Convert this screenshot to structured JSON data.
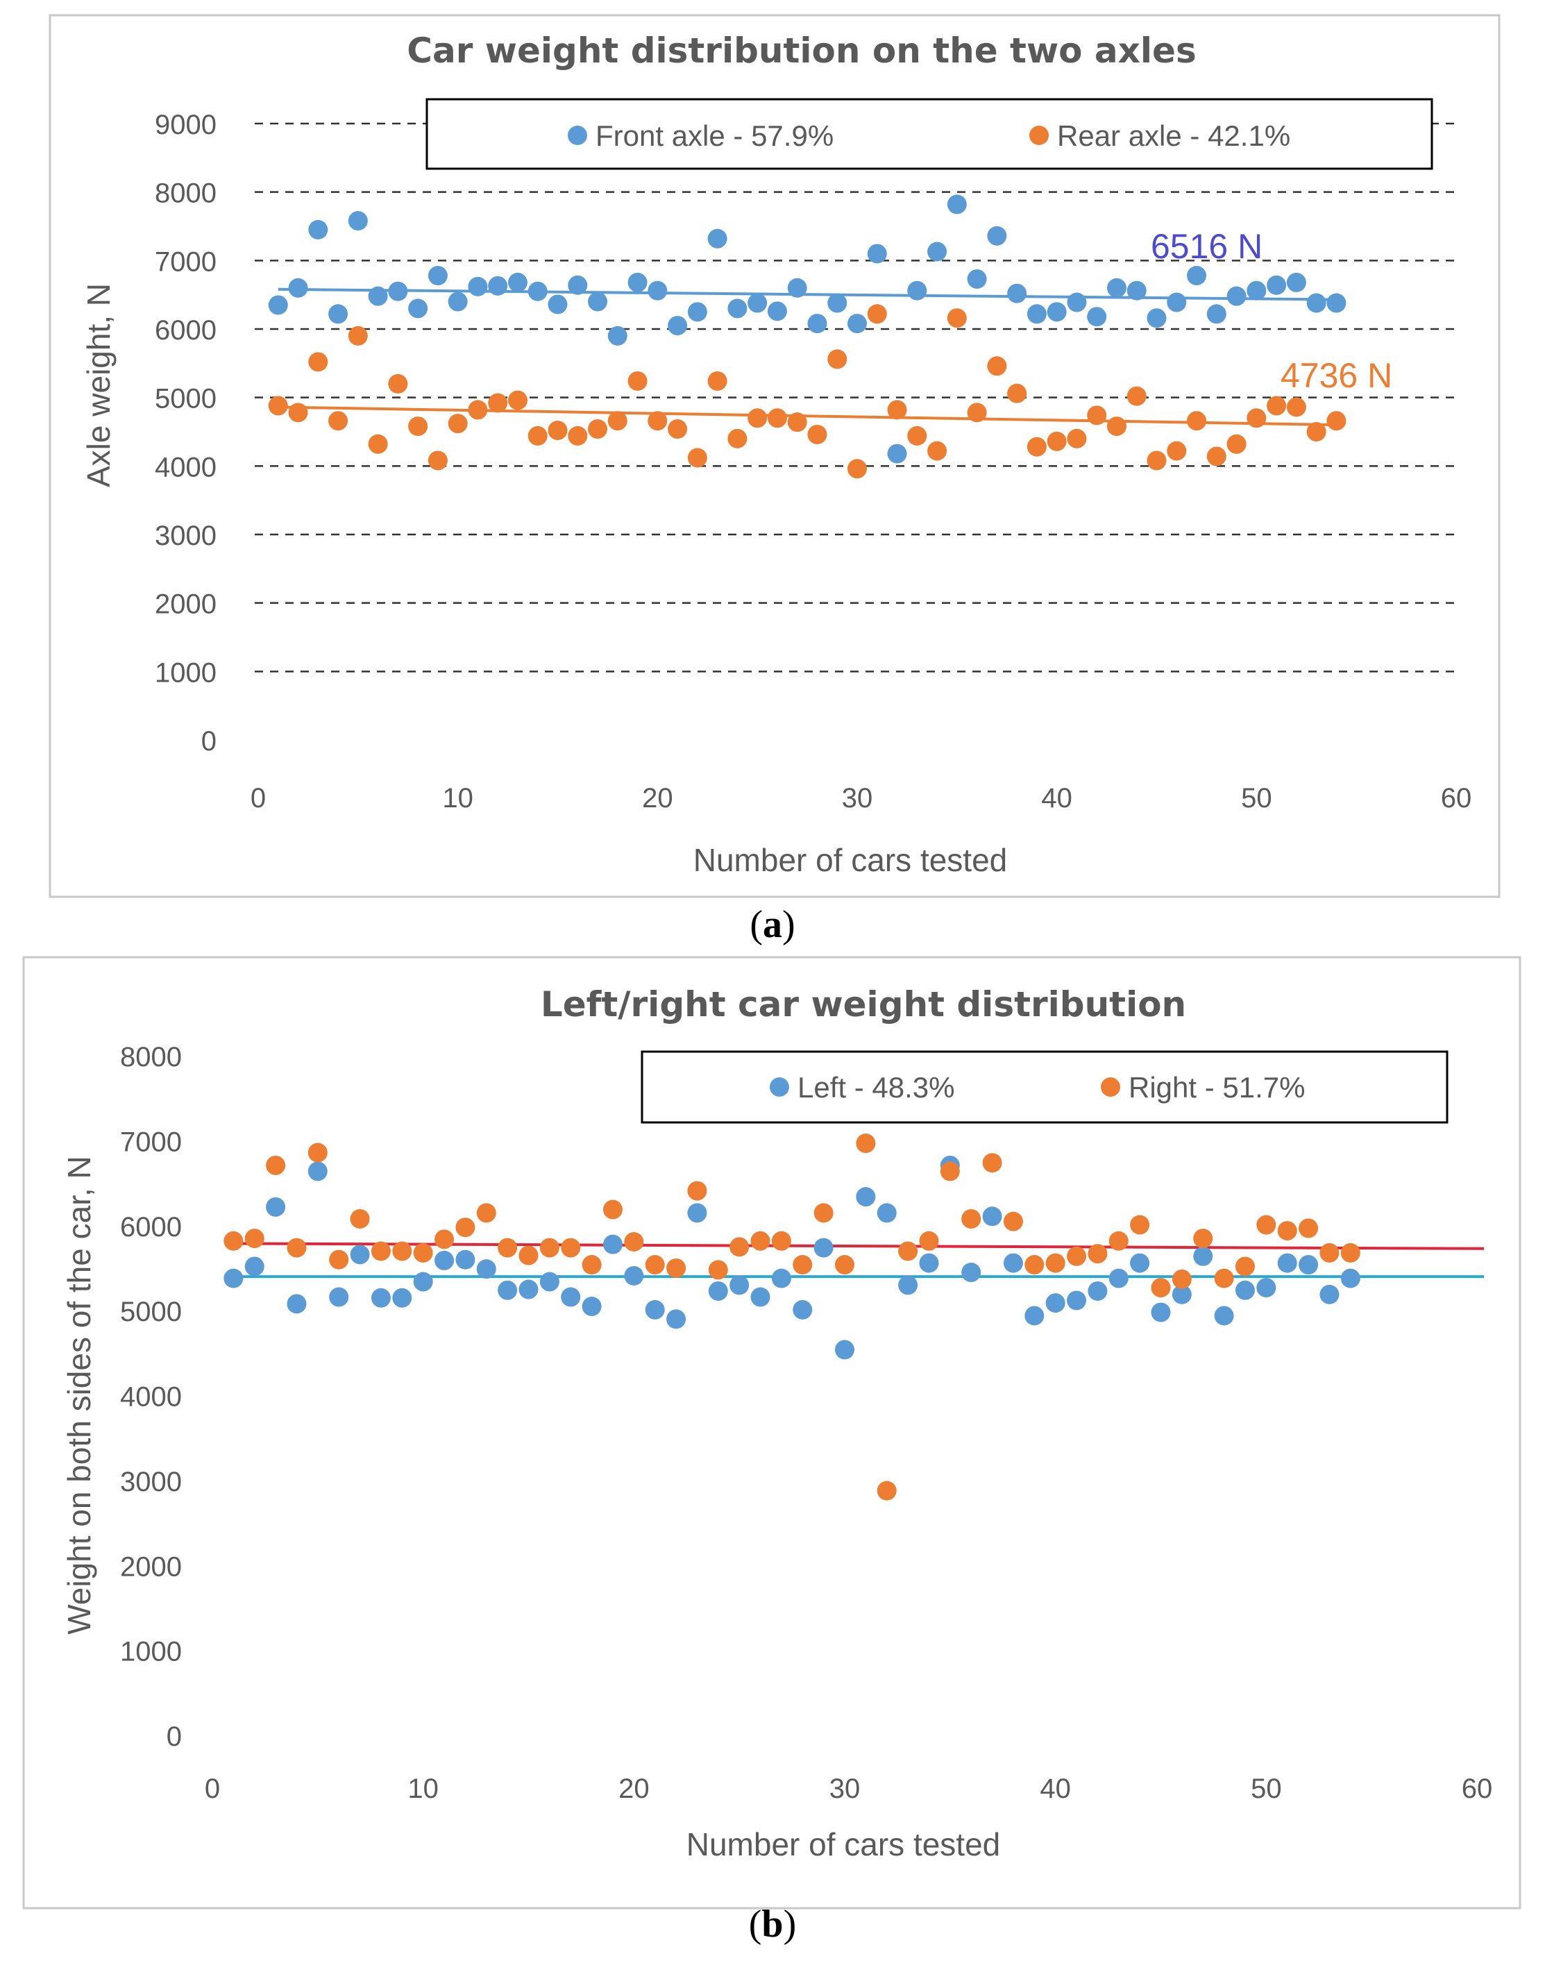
{
  "chart_data": [
    {
      "type": "scatter",
      "title": "Car weight distribution on the two axles",
      "xlabel": "Number of cars tested",
      "ylabel": "Axle weight, N",
      "xlim": [
        0,
        60
      ],
      "ylim": [
        0,
        9000
      ],
      "xticks": [
        0,
        10,
        20,
        30,
        40,
        50,
        60
      ],
      "yticks": [
        0,
        1000,
        2000,
        3000,
        4000,
        5000,
        6000,
        7000,
        8000,
        9000
      ],
      "grid": "horizontal dashed",
      "legend_position": "top",
      "series": [
        {
          "name": "Front axle - 57.9%",
          "color": "#5b9bd5",
          "x": [
            1,
            2,
            3,
            4,
            5,
            6,
            7,
            8,
            9,
            10,
            11,
            12,
            13,
            14,
            15,
            16,
            17,
            18,
            19,
            20,
            21,
            22,
            23,
            24,
            25,
            26,
            27,
            28,
            29,
            30,
            31,
            32,
            33,
            34,
            35,
            36,
            37,
            38,
            39,
            40,
            41,
            42,
            43,
            44,
            45,
            46,
            47,
            48,
            49,
            50,
            51,
            52,
            53,
            54
          ],
          "y": [
            6350,
            6600,
            7450,
            6220,
            7580,
            6480,
            6550,
            6300,
            6780,
            6400,
            6620,
            6630,
            6680,
            6550,
            6360,
            6640,
            6400,
            5900,
            6680,
            6560,
            6050,
            6250,
            7320,
            6300,
            6380,
            6260,
            6600,
            6080,
            6380,
            6080,
            7100,
            4180,
            6560,
            7130,
            7820,
            6730,
            7360,
            6520,
            6220,
            6250,
            6390,
            6180,
            6600,
            6560,
            6160,
            6390,
            6780,
            6220,
            6480,
            6560,
            6640,
            6680,
            6380,
            6380
          ],
          "trend": {
            "start": 6580,
            "end": 6430,
            "label": "6516 N",
            "label_color": "#4b4bd0"
          }
        },
        {
          "name": "Rear axle - 42.1%",
          "color": "#ed7d31",
          "x": [
            1,
            2,
            3,
            4,
            5,
            6,
            7,
            8,
            9,
            10,
            11,
            12,
            13,
            14,
            15,
            16,
            17,
            18,
            19,
            20,
            21,
            22,
            23,
            24,
            25,
            26,
            27,
            28,
            29,
            30,
            31,
            32,
            33,
            34,
            35,
            36,
            37,
            38,
            39,
            40,
            41,
            42,
            43,
            44,
            45,
            46,
            47,
            48,
            49,
            50,
            51,
            52,
            53,
            54
          ],
          "y": [
            4880,
            4780,
            5520,
            4660,
            5900,
            4320,
            5200,
            4580,
            4080,
            4620,
            4820,
            4920,
            4960,
            4440,
            4520,
            4440,
            4540,
            4660,
            5240,
            4660,
            4540,
            4120,
            5240,
            4400,
            4700,
            4700,
            4640,
            4460,
            5560,
            3960,
            6220,
            4820,
            4440,
            4220,
            6160,
            4780,
            5460,
            5060,
            4280,
            4360,
            4400,
            4740,
            4580,
            5020,
            4080,
            4220,
            4660,
            4140,
            4320,
            4700,
            4880,
            4860,
            4500,
            4660
          ],
          "trend": {
            "start": 4860,
            "end": 4600,
            "label": "4736 N",
            "label_color": "#ed7d31"
          }
        }
      ]
    },
    {
      "type": "scatter",
      "title": "Left/right car weight distribution",
      "xlabel": "Number  of cars tested",
      "ylabel": "Weight on both sides of the car, N",
      "xlim": [
        0,
        60
      ],
      "ylim": [
        0,
        8000
      ],
      "xticks": [
        0,
        10,
        20,
        30,
        40,
        50,
        60
      ],
      "yticks": [
        0,
        1000,
        2000,
        3000,
        4000,
        5000,
        6000,
        7000,
        8000
      ],
      "grid": "none",
      "legend_position": "top",
      "series": [
        {
          "name": "Left - 48.3%",
          "color": "#5b9bd5",
          "x": [
            1,
            2,
            3,
            4,
            5,
            6,
            7,
            8,
            9,
            10,
            11,
            12,
            13,
            14,
            15,
            16,
            17,
            18,
            19,
            20,
            21,
            22,
            23,
            24,
            25,
            26,
            27,
            28,
            29,
            30,
            31,
            32,
            33,
            34,
            35,
            36,
            37,
            38,
            39,
            40,
            41,
            42,
            43,
            44,
            45,
            46,
            47,
            48,
            49,
            50,
            51,
            52,
            53,
            54
          ],
          "y": [
            5380,
            5520,
            6220,
            5080,
            6640,
            5160,
            5660,
            5150,
            5150,
            5340,
            5590,
            5600,
            5490,
            5240,
            5250,
            5340,
            5160,
            5050,
            5780,
            5410,
            5010,
            4900,
            6150,
            5230,
            5300,
            5160,
            5380,
            5010,
            5740,
            4540,
            6340,
            6150,
            5300,
            5560,
            6710,
            5450,
            6110,
            5560,
            4940,
            5090,
            5120,
            5230,
            5380,
            5560,
            4980,
            5190,
            5640,
            4940,
            5240,
            5270,
            5560,
            5540,
            5190,
            5380
          ],
          "trend": {
            "start": 5400,
            "end": 5400,
            "color": "#27a9d8"
          }
        },
        {
          "name": "Right - 51.7%",
          "color": "#ed7d31",
          "x": [
            1,
            2,
            3,
            4,
            5,
            6,
            7,
            8,
            9,
            10,
            11,
            12,
            13,
            14,
            15,
            16,
            17,
            18,
            19,
            20,
            21,
            22,
            23,
            24,
            25,
            26,
            27,
            28,
            29,
            30,
            31,
            32,
            33,
            34,
            35,
            36,
            37,
            38,
            39,
            40,
            41,
            42,
            43,
            44,
            45,
            46,
            47,
            48,
            49,
            50,
            51,
            52,
            53,
            54
          ],
          "y": [
            5820,
            5850,
            6710,
            5740,
            6860,
            5600,
            6080,
            5700,
            5700,
            5680,
            5840,
            5980,
            6150,
            5740,
            5650,
            5740,
            5740,
            5540,
            6190,
            5810,
            5540,
            5500,
            6410,
            5480,
            5750,
            5820,
            5820,
            5540,
            6150,
            5540,
            6970,
            2880,
            5700,
            5820,
            6640,
            6080,
            6740,
            6050,
            5540,
            5560,
            5640,
            5670,
            5820,
            6010,
            5270,
            5370,
            5850,
            5380,
            5520,
            6010,
            5940,
            5970,
            5680,
            5680
          ],
          "trend": {
            "start": 5790,
            "end": 5730,
            "color": "#e0263a"
          }
        }
      ]
    }
  ],
  "captions": {
    "a": "a",
    "b": "b"
  }
}
